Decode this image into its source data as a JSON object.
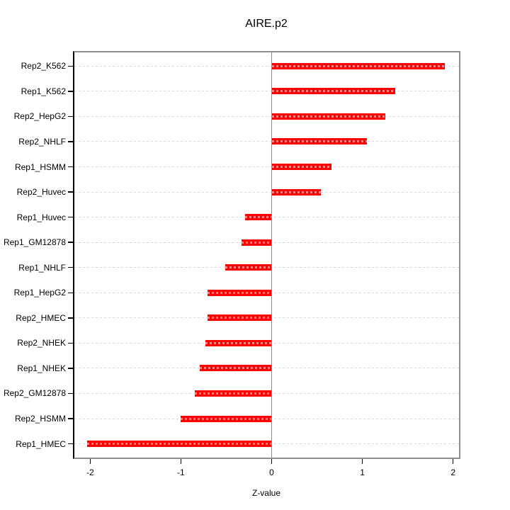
{
  "chart_data": {
    "type": "bar",
    "orientation": "horizontal",
    "title": "AIRE.p2",
    "xlabel": "Z-value",
    "ylabel": "",
    "categories": [
      "Rep2_K562",
      "Rep1_K562",
      "Rep2_HepG2",
      "Rep2_NHLF",
      "Rep1_HSMM",
      "Rep2_Huvec",
      "Rep1_Huvec",
      "Rep1_GM12878",
      "Rep1_NHLF",
      "Rep1_HepG2",
      "Rep2_HMEC",
      "Rep2_NHEK",
      "Rep1_NHEK",
      "Rep2_GM12878",
      "Rep2_HSMM",
      "Rep1_HMEC"
    ],
    "values": [
      1.91,
      1.36,
      1.25,
      1.05,
      0.66,
      0.54,
      -0.29,
      -0.33,
      -0.51,
      -0.71,
      -0.71,
      -0.73,
      -0.79,
      -0.85,
      -1.0,
      -2.03
    ],
    "x_ticks": [
      -2,
      -1,
      0,
      1,
      2
    ],
    "x_tick_labels": [
      "-2",
      "-1",
      "0",
      "1",
      "2"
    ],
    "xlim": [
      -2.19,
      2.08
    ],
    "grid": "dashed horizontal line per category",
    "legend": "none",
    "colors": {
      "bar": "#ff0000",
      "zero_line": "#00ee00",
      "grid": "#d9d9d9",
      "box": "#8f8f8f",
      "axis": "#000000",
      "text": "#000000",
      "background": "#ffffff"
    }
  }
}
